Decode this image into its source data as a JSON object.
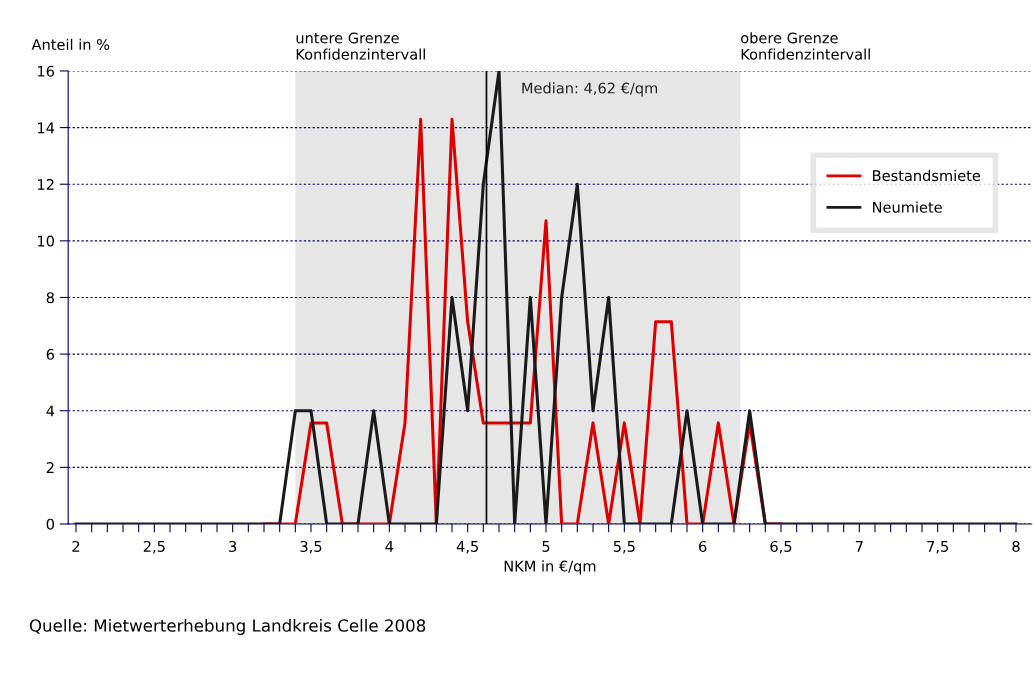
{
  "chart_data": {
    "type": "line",
    "xlabel": "NKM in €/qm",
    "ylabel": "Anteil in %",
    "x": [
      2.0,
      2.1,
      2.2,
      2.3,
      2.4,
      2.5,
      2.6,
      2.7,
      2.8,
      2.9,
      3.0,
      3.1,
      3.2,
      3.3,
      3.4,
      3.5,
      3.6,
      3.7,
      3.8,
      3.9,
      4.0,
      4.1,
      4.2,
      4.3,
      4.4,
      4.5,
      4.6,
      4.7,
      4.8,
      4.9,
      5.0,
      5.1,
      5.2,
      5.3,
      5.4,
      5.5,
      5.6,
      5.7,
      5.8,
      5.9,
      6.0,
      6.1,
      6.2,
      6.3,
      6.4,
      6.5,
      6.6,
      6.7,
      6.8,
      6.9,
      7.0,
      7.1,
      7.2,
      7.3,
      7.4,
      7.5,
      7.6,
      7.7,
      7.8,
      7.9,
      8.0
    ],
    "series": [
      {
        "name": "Bestandsmiete",
        "color": "#dd0000",
        "values": [
          null,
          null,
          null,
          null,
          null,
          null,
          null,
          null,
          null,
          null,
          null,
          null,
          0,
          0,
          0,
          3.57,
          3.57,
          0,
          0,
          0,
          0,
          3.57,
          14.29,
          0,
          14.29,
          7.14,
          3.57,
          3.57,
          3.57,
          3.57,
          10.71,
          0,
          0,
          3.57,
          0,
          3.57,
          0,
          7.14,
          7.14,
          0,
          0,
          3.57,
          0,
          3.57,
          0,
          0,
          null,
          null,
          null,
          null,
          null,
          null,
          null,
          null,
          null,
          null,
          null,
          null,
          null,
          null,
          null
        ]
      },
      {
        "name": "Neumiete",
        "color": "#1a1a1a",
        "values": [
          0,
          0,
          0,
          0,
          0,
          0,
          0,
          0,
          0,
          0,
          0,
          0,
          0,
          0,
          4,
          4,
          0,
          0,
          0,
          4,
          0,
          0,
          0,
          0,
          8,
          4,
          12,
          16,
          0,
          8,
          0,
          8,
          12,
          4,
          8,
          0,
          0,
          0,
          0,
          4,
          0,
          0,
          0,
          4,
          0,
          0,
          0,
          0,
          0,
          0,
          0,
          0,
          0,
          0,
          0,
          0,
          0,
          0,
          0,
          0,
          0
        ]
      }
    ],
    "xlim": [
      1.95,
      8.1
    ],
    "ylim": [
      0,
      16
    ],
    "xticks": [
      2,
      {
        "value": 2.1,
        "label": null
      },
      {
        "value": 2.2,
        "label": null
      },
      {
        "value": 2.3,
        "label": null
      },
      {
        "value": 2.4,
        "label": null
      },
      {
        "value": 2.5,
        "label": "2,5"
      },
      {
        "value": 2.6,
        "label": null
      },
      {
        "value": 2.7,
        "label": null
      },
      {
        "value": 2.8,
        "label": null
      },
      {
        "value": 2.9,
        "label": null
      },
      3,
      {
        "value": 3.1,
        "label": null
      },
      {
        "value": 3.2,
        "label": null
      },
      {
        "value": 3.3,
        "label": null
      },
      {
        "value": 3.4,
        "label": null
      },
      {
        "value": 3.5,
        "label": "3,5"
      },
      {
        "value": 3.6,
        "label": null
      },
      {
        "value": 3.7,
        "label": null
      },
      {
        "value": 3.8,
        "label": null
      },
      {
        "value": 3.9,
        "label": null
      },
      4,
      {
        "value": 4.1,
        "label": null
      },
      {
        "value": 4.2,
        "label": null
      },
      {
        "value": 4.3,
        "label": null
      },
      {
        "value": 4.4,
        "label": null
      },
      {
        "value": 4.5,
        "label": "4,5"
      },
      {
        "value": 4.6,
        "label": null
      },
      {
        "value": 4.7,
        "label": null
      },
      {
        "value": 4.8,
        "label": null
      },
      {
        "value": 4.9,
        "label": null
      },
      5,
      {
        "value": 5.1,
        "label": null
      },
      {
        "value": 5.2,
        "label": null
      },
      {
        "value": 5.3,
        "label": null
      },
      {
        "value": 5.4,
        "label": null
      },
      {
        "value": 5.5,
        "label": "5,5"
      },
      {
        "value": 5.6,
        "label": null
      },
      {
        "value": 5.7,
        "label": null
      },
      {
        "value": 5.8,
        "label": null
      },
      {
        "value": 5.9,
        "label": null
      },
      6,
      {
        "value": 6.1,
        "label": null
      },
      {
        "value": 6.2,
        "label": null
      },
      {
        "value": 6.3,
        "label": null
      },
      {
        "value": 6.4,
        "label": null
      },
      {
        "value": 6.5,
        "label": "6,5"
      },
      {
        "value": 6.6,
        "label": null
      },
      {
        "value": 6.7,
        "label": null
      },
      {
        "value": 6.8,
        "label": null
      },
      {
        "value": 6.9,
        "label": null
      },
      7,
      {
        "value": 7.1,
        "label": null
      },
      {
        "value": 7.2,
        "label": null
      },
      {
        "value": 7.3,
        "label": null
      },
      {
        "value": 7.4,
        "label": null
      },
      {
        "value": 7.5,
        "label": "7,5"
      },
      {
        "value": 7.6,
        "label": null
      },
      {
        "value": 7.7,
        "label": null
      },
      {
        "value": 7.8,
        "label": null
      },
      {
        "value": 7.9,
        "label": null
      },
      8
    ],
    "yticks": [
      0,
      2,
      4,
      6,
      8,
      10,
      12,
      14,
      16
    ],
    "grid": "y",
    "legend": "top right",
    "marker": "none",
    "line_style": "solid",
    "bands": [
      {
        "axis": "x",
        "from": 3.4,
        "to": 6.24,
        "color": "#e6e6e6"
      }
    ],
    "ref_lines": [
      {
        "axis": "x",
        "value": 4.62,
        "label": "Median: 4,62 €/qm",
        "color": "#000000"
      }
    ],
    "annotations": [
      {
        "text": "untere Grenze\nKonfidenzintervall",
        "x": 3.4,
        "y": 16
      },
      {
        "text": "obere Grenze\nKonfidenzintervall",
        "x": 6.24,
        "y": 16
      },
      "Quelle: Mietwerterhebung Landkreis Celle 2008"
    ]
  }
}
